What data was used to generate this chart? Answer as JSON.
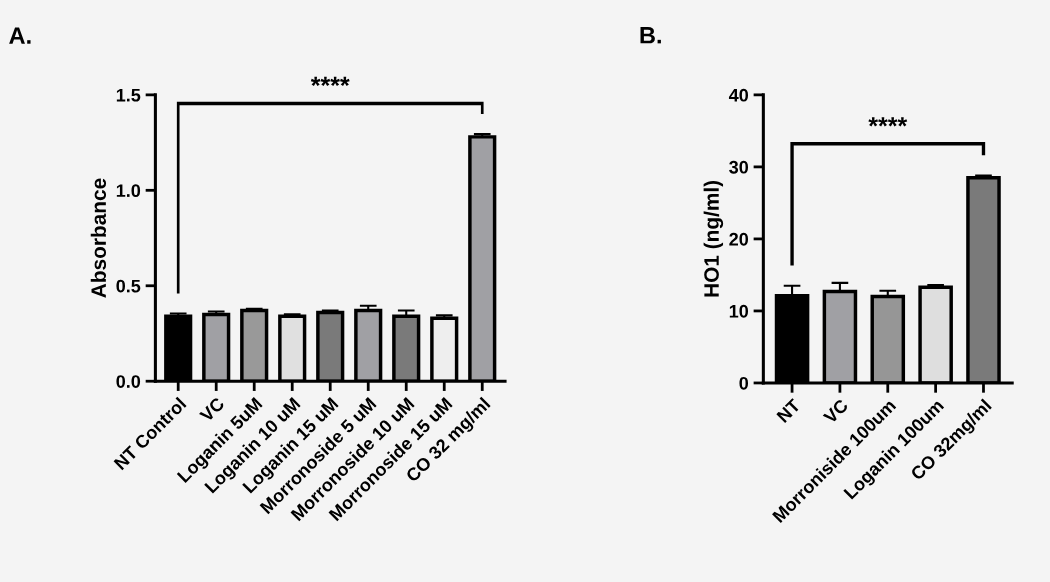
{
  "chart_data": [
    {
      "type": "bar",
      "title": "A.",
      "ylabel": "Absorbance",
      "categories": [
        "NT Control",
        "VC",
        "Loganin 5uM",
        "Loganin 10 uM",
        "Loganin 15 uM",
        "Morronoside 5 uM",
        "Morronoside 10 uM",
        "Morronoside 15 uM",
        "CO 32 mg/ml"
      ],
      "values": [
        0.34,
        0.35,
        0.37,
        0.34,
        0.36,
        0.37,
        0.34,
        0.33,
        1.28
      ],
      "errors": [
        0.015,
        0.015,
        0.01,
        0.01,
        0.01,
        0.025,
        0.03,
        0.015,
        0.015
      ],
      "colors": [
        "#000000",
        "#a0a0a4",
        "#999999",
        "#e0e0e0",
        "#7a7a7a",
        "#a0a0a4",
        "#7a7a7a",
        "#eeeeee",
        "#a0a0a4"
      ],
      "ylim": [
        0,
        1.5
      ],
      "yticks": [
        {
          "value": 0,
          "label": "0.0"
        },
        0.5,
        {
          "value": 1,
          "label": "1.0"
        },
        1.5
      ],
      "grid": false,
      "legend": false,
      "annotations": [
        "****"
      ]
    },
    {
      "type": "bar",
      "title": "B.",
      "ylabel": "HO1 (ng/ml)",
      "categories": [
        "NT",
        "VC",
        "Morroniside 100um",
        "Loganin 100um",
        "CO 32mg/ml"
      ],
      "values": [
        12.1,
        12.7,
        12.0,
        13.3,
        28.5
      ],
      "errors": [
        1.4,
        1.2,
        0.8,
        0.3,
        0.3
      ],
      "colors": [
        "#000000",
        "#a0a0a4",
        "#969696",
        "#dedede",
        "#7a7a7a"
      ],
      "ylim": [
        0,
        40
      ],
      "yticks": [
        0,
        10,
        20,
        30,
        40
      ],
      "grid": false,
      "legend": false,
      "annotations": [
        "****"
      ]
    }
  ]
}
